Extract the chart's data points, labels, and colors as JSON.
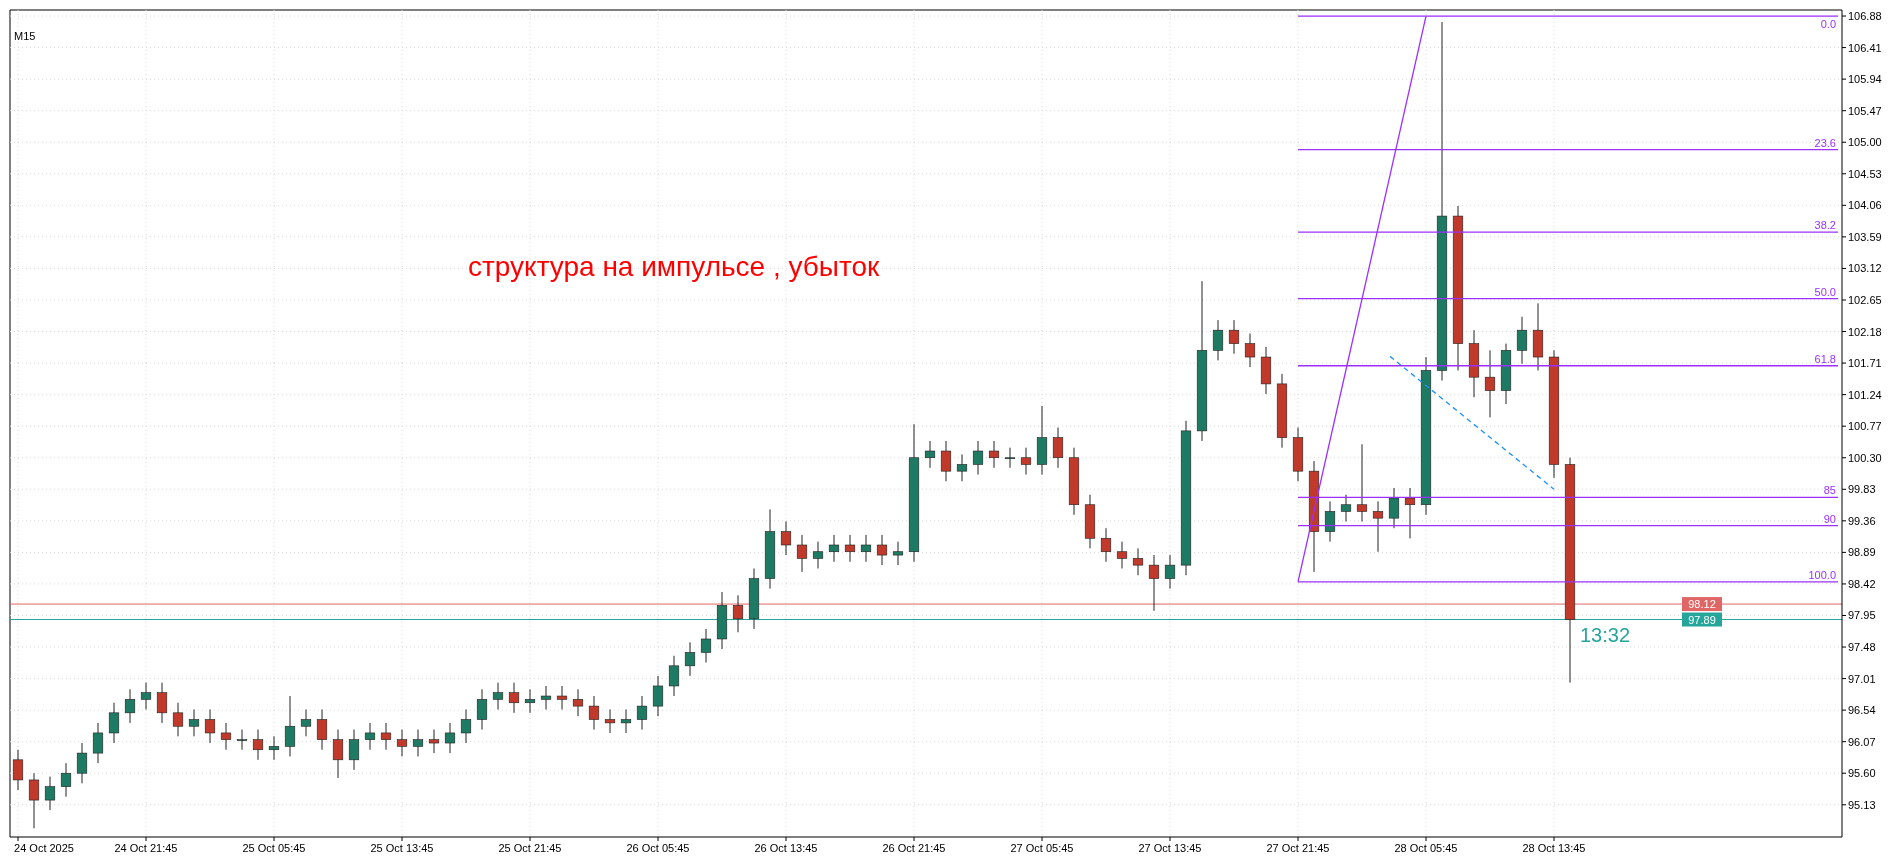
{
  "chart_data": {
    "type": "candlestick",
    "title": "M15",
    "annotations": [
      "структура на импульсе , убыток",
      "13:32"
    ],
    "x": [
      "2025-10-24T13:45",
      "2025-10-24T14:45",
      "2025-10-24T15:45",
      "2025-10-24T16:45",
      "2025-10-24T17:45",
      "2025-10-24T18:45",
      "2025-10-24T19:45",
      "2025-10-24T20:45",
      "2025-10-24T21:45",
      "2025-10-24T22:45",
      "2025-10-24T23:45",
      "2025-10-25T00:45",
      "2025-10-25T01:45",
      "2025-10-25T02:45",
      "2025-10-25T03:45",
      "2025-10-25T04:45",
      "2025-10-25T05:45",
      "2025-10-25T06:45",
      "2025-10-25T07:45",
      "2025-10-25T08:45",
      "2025-10-25T09:45",
      "2025-10-25T10:45",
      "2025-10-25T11:45",
      "2025-10-25T12:45",
      "2025-10-25T13:45",
      "2025-10-25T14:45",
      "2025-10-25T15:45",
      "2025-10-25T16:45",
      "2025-10-25T17:45",
      "2025-10-25T18:45",
      "2025-10-25T19:45",
      "2025-10-25T20:45",
      "2025-10-25T21:45",
      "2025-10-25T22:45",
      "2025-10-25T23:45",
      "2025-10-26T00:45",
      "2025-10-26T01:45",
      "2025-10-26T02:45",
      "2025-10-26T03:45",
      "2025-10-26T04:45",
      "2025-10-26T05:45",
      "2025-10-26T06:45",
      "2025-10-26T07:45",
      "2025-10-26T08:45",
      "2025-10-26T09:45",
      "2025-10-26T10:45",
      "2025-10-26T11:45",
      "2025-10-26T12:45",
      "2025-10-26T13:45",
      "2025-10-26T14:45",
      "2025-10-26T15:45",
      "2025-10-26T16:45",
      "2025-10-26T17:45",
      "2025-10-26T18:45",
      "2025-10-26T19:45",
      "2025-10-26T20:45",
      "2025-10-26T21:45",
      "2025-10-26T22:45",
      "2025-10-26T23:45",
      "2025-10-27T00:45",
      "2025-10-27T01:45",
      "2025-10-27T02:45",
      "2025-10-27T03:45",
      "2025-10-27T04:45",
      "2025-10-27T05:45",
      "2025-10-27T06:45",
      "2025-10-27T07:45",
      "2025-10-27T08:45",
      "2025-10-27T09:45",
      "2025-10-27T10:45",
      "2025-10-27T11:45",
      "2025-10-27T12:45",
      "2025-10-27T13:45",
      "2025-10-27T14:45",
      "2025-10-27T15:45",
      "2025-10-27T16:45",
      "2025-10-27T17:45",
      "2025-10-27T18:45",
      "2025-10-27T19:45",
      "2025-10-27T20:45",
      "2025-10-27T21:45",
      "2025-10-27T22:45",
      "2025-10-27T23:45",
      "2025-10-28T00:45",
      "2025-10-28T01:45",
      "2025-10-28T02:45",
      "2025-10-28T03:45",
      "2025-10-28T04:45",
      "2025-10-28T05:45",
      "2025-10-28T06:45",
      "2025-10-28T07:45",
      "2025-10-28T08:45",
      "2025-10-28T09:45",
      "2025-10-28T10:45",
      "2025-10-28T11:45",
      "2025-10-28T12:45",
      "2025-10-28T13:45",
      "2025-10-28T14:45"
    ],
    "ohlc": [
      [
        95.8,
        95.95,
        95.35,
        95.5
      ],
      [
        95.5,
        95.6,
        94.78,
        95.2
      ],
      [
        95.2,
        95.55,
        95.05,
        95.4
      ],
      [
        95.4,
        95.75,
        95.25,
        95.6
      ],
      [
        95.6,
        96.05,
        95.45,
        95.9
      ],
      [
        95.9,
        96.35,
        95.75,
        96.2
      ],
      [
        96.2,
        96.65,
        96.05,
        96.5
      ],
      [
        96.5,
        96.85,
        96.35,
        96.7
      ],
      [
        96.7,
        96.95,
        96.55,
        96.8
      ],
      [
        96.8,
        96.95,
        96.35,
        96.5
      ],
      [
        96.5,
        96.65,
        96.15,
        96.3
      ],
      [
        96.3,
        96.55,
        96.15,
        96.4
      ],
      [
        96.4,
        96.55,
        96.05,
        96.2
      ],
      [
        96.2,
        96.35,
        95.95,
        96.1
      ],
      [
        96.1,
        96.25,
        95.95,
        96.1
      ],
      [
        96.1,
        96.25,
        95.8,
        95.95
      ],
      [
        95.95,
        96.15,
        95.8,
        96.0
      ],
      [
        96.0,
        96.75,
        95.85,
        96.3
      ],
      [
        96.3,
        96.55,
        96.15,
        96.4
      ],
      [
        96.4,
        96.55,
        95.95,
        96.1
      ],
      [
        96.1,
        96.25,
        95.53,
        95.8
      ],
      [
        95.8,
        96.25,
        95.65,
        96.1
      ],
      [
        96.1,
        96.35,
        95.95,
        96.2
      ],
      [
        96.2,
        96.35,
        95.95,
        96.1
      ],
      [
        96.1,
        96.25,
        95.85,
        96.0
      ],
      [
        96.0,
        96.25,
        95.85,
        96.1
      ],
      [
        96.1,
        96.25,
        95.9,
        96.05
      ],
      [
        96.05,
        96.35,
        95.9,
        96.2
      ],
      [
        96.2,
        96.55,
        96.05,
        96.4
      ],
      [
        96.4,
        96.85,
        96.25,
        96.7
      ],
      [
        96.7,
        96.95,
        96.55,
        96.8
      ],
      [
        96.8,
        96.95,
        96.5,
        96.65
      ],
      [
        96.65,
        96.85,
        96.5,
        96.7
      ],
      [
        96.7,
        96.9,
        96.55,
        96.75
      ],
      [
        96.75,
        96.9,
        96.55,
        96.7
      ],
      [
        96.7,
        96.85,
        96.45,
        96.6
      ],
      [
        96.6,
        96.75,
        96.25,
        96.4
      ],
      [
        96.4,
        96.55,
        96.2,
        96.35
      ],
      [
        96.35,
        96.55,
        96.2,
        96.4
      ],
      [
        96.4,
        96.75,
        96.25,
        96.6
      ],
      [
        96.6,
        97.05,
        96.45,
        96.9
      ],
      [
        96.9,
        97.35,
        96.75,
        97.2
      ],
      [
        97.2,
        97.55,
        97.05,
        97.4
      ],
      [
        97.4,
        97.75,
        97.25,
        97.6
      ],
      [
        97.6,
        98.3,
        97.45,
        98.1
      ],
      [
        98.1,
        98.25,
        97.7,
        97.9
      ],
      [
        97.9,
        98.65,
        97.75,
        98.5
      ],
      [
        98.5,
        99.53,
        98.35,
        99.2
      ],
      [
        99.2,
        99.35,
        98.85,
        99.0
      ],
      [
        99.0,
        99.15,
        98.6,
        98.8
      ],
      [
        98.8,
        99.05,
        98.65,
        98.9
      ],
      [
        98.9,
        99.15,
        98.75,
        99.0
      ],
      [
        99.0,
        99.15,
        98.75,
        98.9
      ],
      [
        98.9,
        99.15,
        98.75,
        99.0
      ],
      [
        99.0,
        99.15,
        98.7,
        98.85
      ],
      [
        98.85,
        99.05,
        98.7,
        98.9
      ],
      [
        98.9,
        100.8,
        98.75,
        100.3
      ],
      [
        100.3,
        100.55,
        100.15,
        100.4
      ],
      [
        100.4,
        100.55,
        99.95,
        100.1
      ],
      [
        100.1,
        100.35,
        99.95,
        100.2
      ],
      [
        100.2,
        100.55,
        100.05,
        100.4
      ],
      [
        100.4,
        100.55,
        100.15,
        100.3
      ],
      [
        100.3,
        100.45,
        100.15,
        100.3
      ],
      [
        100.3,
        100.45,
        100.05,
        100.2
      ],
      [
        100.2,
        101.07,
        100.05,
        100.6
      ],
      [
        100.6,
        100.75,
        100.15,
        100.3
      ],
      [
        100.3,
        100.45,
        99.45,
        99.6
      ],
      [
        99.6,
        99.75,
        98.95,
        99.1
      ],
      [
        99.1,
        99.25,
        98.75,
        98.9
      ],
      [
        98.9,
        99.05,
        98.65,
        98.8
      ],
      [
        98.8,
        98.95,
        98.55,
        98.7
      ],
      [
        98.7,
        98.85,
        98.02,
        98.5
      ],
      [
        98.5,
        98.85,
        98.35,
        98.7
      ],
      [
        98.7,
        100.85,
        98.55,
        100.7
      ],
      [
        100.7,
        102.93,
        100.55,
        101.9
      ],
      [
        101.9,
        102.35,
        101.75,
        102.2
      ],
      [
        102.2,
        102.35,
        101.85,
        102.0
      ],
      [
        102.0,
        102.15,
        101.65,
        101.8
      ],
      [
        101.8,
        101.95,
        101.25,
        101.4
      ],
      [
        101.4,
        101.55,
        100.45,
        100.6
      ],
      [
        100.6,
        100.75,
        99.95,
        100.1
      ],
      [
        100.1,
        100.25,
        98.6,
        99.2
      ],
      [
        99.2,
        99.65,
        99.05,
        99.5
      ],
      [
        99.5,
        99.75,
        99.35,
        99.6
      ],
      [
        99.6,
        100.5,
        99.35,
        99.5
      ],
      [
        99.5,
        99.65,
        98.9,
        99.4
      ],
      [
        99.4,
        99.85,
        99.25,
        99.7
      ],
      [
        99.7,
        99.85,
        99.1,
        99.6
      ],
      [
        99.6,
        101.8,
        99.45,
        101.6
      ],
      [
        101.6,
        106.79,
        101.45,
        103.9
      ],
      [
        103.9,
        104.05,
        101.6,
        102.0
      ],
      [
        102.0,
        102.2,
        101.2,
        101.5
      ],
      [
        101.5,
        101.9,
        100.9,
        101.3
      ],
      [
        101.3,
        102.0,
        101.1,
        101.9
      ],
      [
        101.9,
        102.4,
        101.7,
        102.2
      ],
      [
        102.2,
        102.6,
        101.6,
        101.8
      ],
      [
        101.8,
        101.9,
        100.0,
        100.2
      ],
      [
        100.2,
        100.3,
        96.95,
        97.89
      ]
    ],
    "colors": [
      "#c0392b",
      "#c0392b",
      "#1f7a64",
      "#1f7a64",
      "#1f7a64",
      "#1f7a64",
      "#1f7a64",
      "#1f7a64",
      "#1f7a64",
      "#c0392b",
      "#c0392b",
      "#1f7a64",
      "#c0392b",
      "#c0392b",
      "#1f7a64",
      "#c0392b",
      "#1f7a64",
      "#1f7a64",
      "#1f7a64",
      "#c0392b",
      "#c0392b",
      "#1f7a64",
      "#1f7a64",
      "#c0392b",
      "#c0392b",
      "#1f7a64",
      "#c0392b",
      "#1f7a64",
      "#1f7a64",
      "#1f7a64",
      "#1f7a64",
      "#c0392b",
      "#1f7a64",
      "#1f7a64",
      "#c0392b",
      "#c0392b",
      "#c0392b",
      "#c0392b",
      "#1f7a64",
      "#1f7a64",
      "#1f7a64",
      "#1f7a64",
      "#1f7a64",
      "#1f7a64",
      "#1f7a64",
      "#c0392b",
      "#1f7a64",
      "#1f7a64",
      "#c0392b",
      "#c0392b",
      "#1f7a64",
      "#1f7a64",
      "#c0392b",
      "#1f7a64",
      "#c0392b",
      "#1f7a64",
      "#1f7a64",
      "#1f7a64",
      "#c0392b",
      "#1f7a64",
      "#1f7a64",
      "#c0392b",
      "#1f7a64",
      "#c0392b",
      "#1f7a64",
      "#c0392b",
      "#c0392b",
      "#c0392b",
      "#c0392b",
      "#c0392b",
      "#c0392b",
      "#c0392b",
      "#1f7a64",
      "#1f7a64",
      "#1f7a64",
      "#1f7a64",
      "#c0392b",
      "#c0392b",
      "#c0392b",
      "#c0392b",
      "#c0392b",
      "#c0392b",
      "#1f7a64",
      "#1f7a64",
      "#c0392b",
      "#c0392b",
      "#1f7a64",
      "#c0392b",
      "#1f7a64",
      "#1f7a64",
      "#c0392b",
      "#c0392b",
      "#c0392b",
      "#1f7a64",
      "#1f7a64",
      "#c0392b",
      "#c0392b",
      "#c0392b"
    ],
    "series": [
      {
        "type": "line",
        "color": "#9b30ff",
        "x": [
          "2025-10-27T21:45",
          "2025-10-28T05:45"
        ],
        "values": [
          98.45,
          106.88
        ]
      },
      {
        "type": "line",
        "color": "#1e90ff",
        "line_style": "dashed",
        "x": [
          "2025-10-28T03:30",
          "2025-10-28T13:45"
        ],
        "values": [
          101.81,
          99.83
        ]
      },
      {
        "type": "line",
        "name": "0.0",
        "color": "#9b30ff",
        "x": [
          "2025-10-27T21:45",
          "2025-10-29T07:30"
        ],
        "values": [
          106.88,
          106.88
        ]
      },
      {
        "type": "line",
        "name": "23.6",
        "color": "#9b30ff",
        "x": [
          "2025-10-27T21:45",
          "2025-10-29T07:30"
        ],
        "values": [
          104.89,
          104.89
        ]
      },
      {
        "type": "line",
        "name": "38.2",
        "color": "#9b30ff",
        "x": [
          "2025-10-27T21:45",
          "2025-10-29T07:30"
        ],
        "values": [
          103.66,
          103.66
        ]
      },
      {
        "type": "line",
        "name": "50.0",
        "color": "#9b30ff",
        "x": [
          "2025-10-27T21:45",
          "2025-10-29T07:30"
        ],
        "values": [
          102.67,
          102.67
        ]
      },
      {
        "type": "line",
        "name": "61.8",
        "color": "#9b30ff",
        "x": [
          "2025-10-27T21:45",
          "2025-10-29T07:30"
        ],
        "values": [
          101.67,
          101.67
        ]
      },
      {
        "type": "line",
        "name": "85",
        "color": "#9b30ff",
        "x": [
          "2025-10-27T21:45",
          "2025-10-29T07:30"
        ],
        "values": [
          99.71,
          99.71
        ]
      },
      {
        "type": "line",
        "name": "90",
        "color": "#9b30ff",
        "x": [
          "2025-10-27T21:45",
          "2025-10-29T07:30"
        ],
        "values": [
          99.29,
          99.29
        ]
      },
      {
        "type": "line",
        "name": "100.0",
        "color": "#9b30ff",
        "x": [
          "2025-10-27T21:45",
          "2025-10-29T07:30"
        ],
        "values": [
          98.45,
          98.45
        ]
      }
    ],
    "ref_lines": [
      {
        "axis": "y",
        "value": 98.12,
        "label": "98.12",
        "color": "#e06666"
      },
      {
        "axis": "y",
        "value": 97.89,
        "label": "97.89",
        "color": "#26a69a"
      }
    ],
    "xlim": [
      "2025-10-24T13:15",
      "2025-10-29T07:45"
    ],
    "xticks": [
      {
        "value": "2025-10-24T13:45",
        "label": "24 Oct 2025"
      },
      {
        "value": "2025-10-24T21:45",
        "label": "24 Oct 21:45"
      },
      {
        "value": "2025-10-25T05:45",
        "label": "25 Oct 05:45"
      },
      {
        "value": "2025-10-25T13:45",
        "label": "25 Oct 13:45"
      },
      {
        "value": "2025-10-25T21:45",
        "label": "25 Oct 21:45"
      },
      {
        "value": "2025-10-26T05:45",
        "label": "26 Oct 05:45"
      },
      {
        "value": "2025-10-26T13:45",
        "label": "26 Oct 13:45"
      },
      {
        "value": "2025-10-26T21:45",
        "label": "26 Oct 21:45"
      },
      {
        "value": "2025-10-27T05:45",
        "label": "27 Oct 05:45"
      },
      {
        "value": "2025-10-27T13:45",
        "label": "27 Oct 13:45"
      },
      {
        "value": "2025-10-27T21:45",
        "label": "27 Oct 21:45"
      },
      {
        "value": "2025-10-28T05:45",
        "label": "28 Oct 05:45"
      },
      {
        "value": "2025-10-28T13:45",
        "label": "28 Oct 13:45"
      }
    ],
    "ylim": [
      94.65,
      106.97
    ],
    "yticks": [
      95.13,
      {
        "value": 95.6,
        "label": "95.60"
      },
      96.07,
      96.54,
      97.01,
      97.48,
      97.95,
      98.42,
      98.89,
      99.36,
      99.83,
      {
        "value": 100.3,
        "label": "100.30"
      },
      100.77,
      101.24,
      101.71,
      102.18,
      102.65,
      103.12,
      103.59,
      104.06,
      104.53,
      {
        "value": 105,
        "label": "105.00"
      },
      105.47,
      105.94,
      106.41,
      106.88
    ],
    "grid": true
  }
}
